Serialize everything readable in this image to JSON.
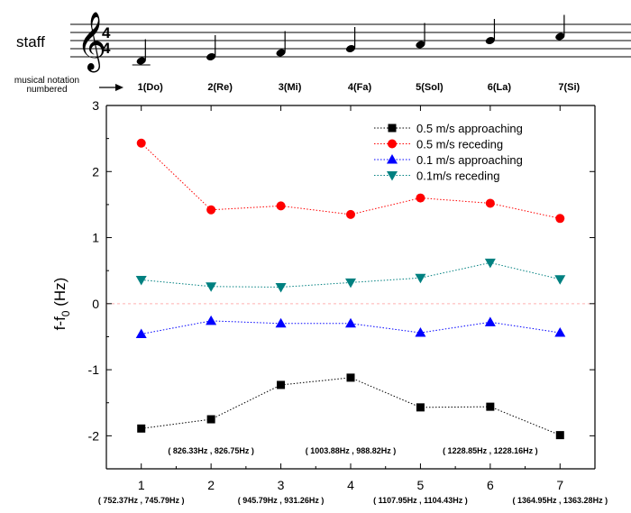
{
  "staff": {
    "label": "staff",
    "time_signature": {
      "top": "4",
      "bottom": "4"
    },
    "clef_glyph": "𝄞",
    "notes": [
      "1",
      "2",
      "3",
      "4",
      "5",
      "6",
      "7"
    ]
  },
  "notation": {
    "label_line1": "musical notation",
    "label_line2": "numbered",
    "arrow_glyph": "→",
    "items": [
      "1(Do)",
      "2(Re)",
      "3(Mi)",
      "4(Fa)",
      "5(Sol)",
      "6(La)",
      "7(Si)"
    ]
  },
  "frequency_pairs_upper": [
    {
      "at": 2,
      "text": "( 826.33Hz , 826.75Hz )"
    },
    {
      "at": 4,
      "text": "( 1003.88Hz , 988.82Hz )"
    },
    {
      "at": 6,
      "text": "( 1228.85Hz , 1228.16Hz )"
    }
  ],
  "frequency_pairs_lower": [
    {
      "at": 1,
      "text": "( 752.37Hz , 745.79Hz )"
    },
    {
      "at": 3,
      "text": "( 945.79Hz , 931.26Hz )"
    },
    {
      "at": 5,
      "text": "( 1107.95Hz , 1104.43Hz )"
    },
    {
      "at": 7,
      "text": "( 1364.95Hz , 1363.28Hz )"
    }
  ],
  "chart_data": {
    "type": "scatter",
    "title": "",
    "xlabel": "",
    "ylabel": "f-f0 (Hz)",
    "ylabel_main": "f-f",
    "ylabel_sub": "0",
    "ylabel_unit": " (Hz)",
    "xlim": [
      0.5,
      7.5
    ],
    "ylim": [
      -2.5,
      3
    ],
    "x": [
      1,
      2,
      3,
      4,
      5,
      6,
      7
    ],
    "x_ticks": [
      1,
      2,
      3,
      4,
      5,
      6,
      7
    ],
    "y_ticks": [
      -2,
      -1,
      0,
      1,
      2,
      3
    ],
    "legend_position": "top-right",
    "zero_line": true,
    "grid": false,
    "series": [
      {
        "name": "0.5 m/s approaching",
        "marker": "square",
        "color": "#000000",
        "values": [
          -1.89,
          -1.75,
          -1.23,
          -1.12,
          -1.57,
          -1.56,
          -1.99
        ]
      },
      {
        "name": "0.5 m/s receding",
        "marker": "circle",
        "color": "#ff0000",
        "values": [
          2.43,
          1.42,
          1.48,
          1.35,
          1.6,
          1.52,
          1.29
        ]
      },
      {
        "name": "0.1 m/s approaching",
        "marker": "triangle-up",
        "color": "#0000ff",
        "values": [
          -0.46,
          -0.26,
          -0.3,
          -0.3,
          -0.44,
          -0.28,
          -0.44
        ]
      },
      {
        "name": "0.1m/s receding",
        "marker": "triangle-down",
        "color": "#008080",
        "values": [
          0.36,
          0.26,
          0.25,
          0.32,
          0.39,
          0.62,
          0.37
        ]
      }
    ]
  }
}
